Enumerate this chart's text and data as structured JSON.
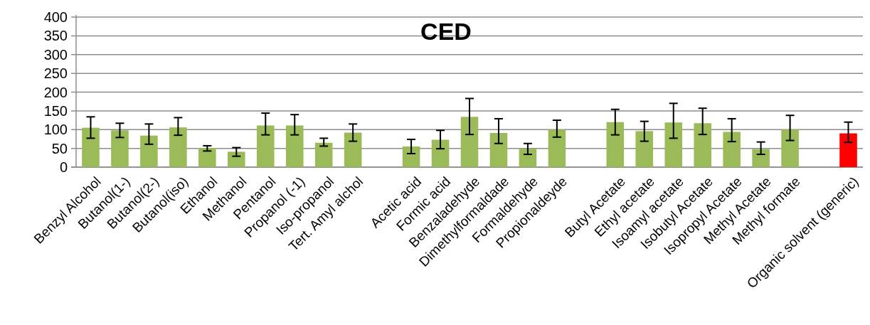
{
  "chart_data": {
    "type": "bar",
    "title": "CED",
    "categories": [
      "Benzyl Alcohol",
      "Butanol(1-)",
      "Butanol(2-)",
      "Butanol(iso)",
      "Ethanol",
      "Methanol",
      "Pentanol",
      "Propanol (-1)",
      "Iso-propanol",
      "Tert. Amyl alchol",
      null,
      "Acetic acid",
      "Formic acid",
      "Benzaladehyde",
      "Dimethylformaldade",
      "Formaldehyde",
      "Propionaldeyde",
      null,
      "Butyl Acetate",
      "Ethyl acetate",
      "Isoamyl acetate",
      "Isobutyl Acetate",
      "Isopropyl Acetate",
      "Methyl Acetate",
      "Methyl formate",
      null,
      "Organic solvent (generic)"
    ],
    "values": [
      105,
      98,
      84,
      106,
      51,
      41,
      111,
      111,
      65,
      92,
      null,
      55,
      73,
      134,
      91,
      49,
      100,
      null,
      120,
      96,
      119,
      117,
      94,
      48,
      100,
      null,
      90
    ],
    "errors": [
      [
        77,
        134
      ],
      [
        79,
        117
      ],
      [
        61,
        115
      ],
      [
        85,
        132
      ],
      [
        43,
        57
      ],
      [
        29,
        52
      ],
      [
        86,
        144
      ],
      [
        86,
        140
      ],
      [
        56,
        77
      ],
      [
        69,
        115
      ],
      null,
      [
        36,
        74
      ],
      [
        49,
        98
      ],
      [
        87,
        183
      ],
      [
        63,
        129
      ],
      [
        34,
        63
      ],
      [
        80,
        125
      ],
      null,
      [
        86,
        154
      ],
      [
        69,
        122
      ],
      [
        77,
        170
      ],
      [
        87,
        157
      ],
      [
        68,
        129
      ],
      [
        34,
        67
      ],
      [
        71,
        138
      ],
      null,
      [
        66,
        120
      ]
    ],
    "colors": [
      "#9bbb59",
      "#9bbb59",
      "#9bbb59",
      "#9bbb59",
      "#9bbb59",
      "#9bbb59",
      "#9bbb59",
      "#9bbb59",
      "#9bbb59",
      "#9bbb59",
      null,
      "#9bbb59",
      "#9bbb59",
      "#9bbb59",
      "#9bbb59",
      "#9bbb59",
      "#9bbb59",
      null,
      "#9bbb59",
      "#9bbb59",
      "#9bbb59",
      "#9bbb59",
      "#9bbb59",
      "#9bbb59",
      "#9bbb59",
      null,
      "#ff0000"
    ],
    "ylim": [
      0,
      400
    ],
    "yticks": [
      0,
      50,
      100,
      150,
      200,
      250,
      300,
      350,
      400
    ],
    "grid": "y"
  }
}
